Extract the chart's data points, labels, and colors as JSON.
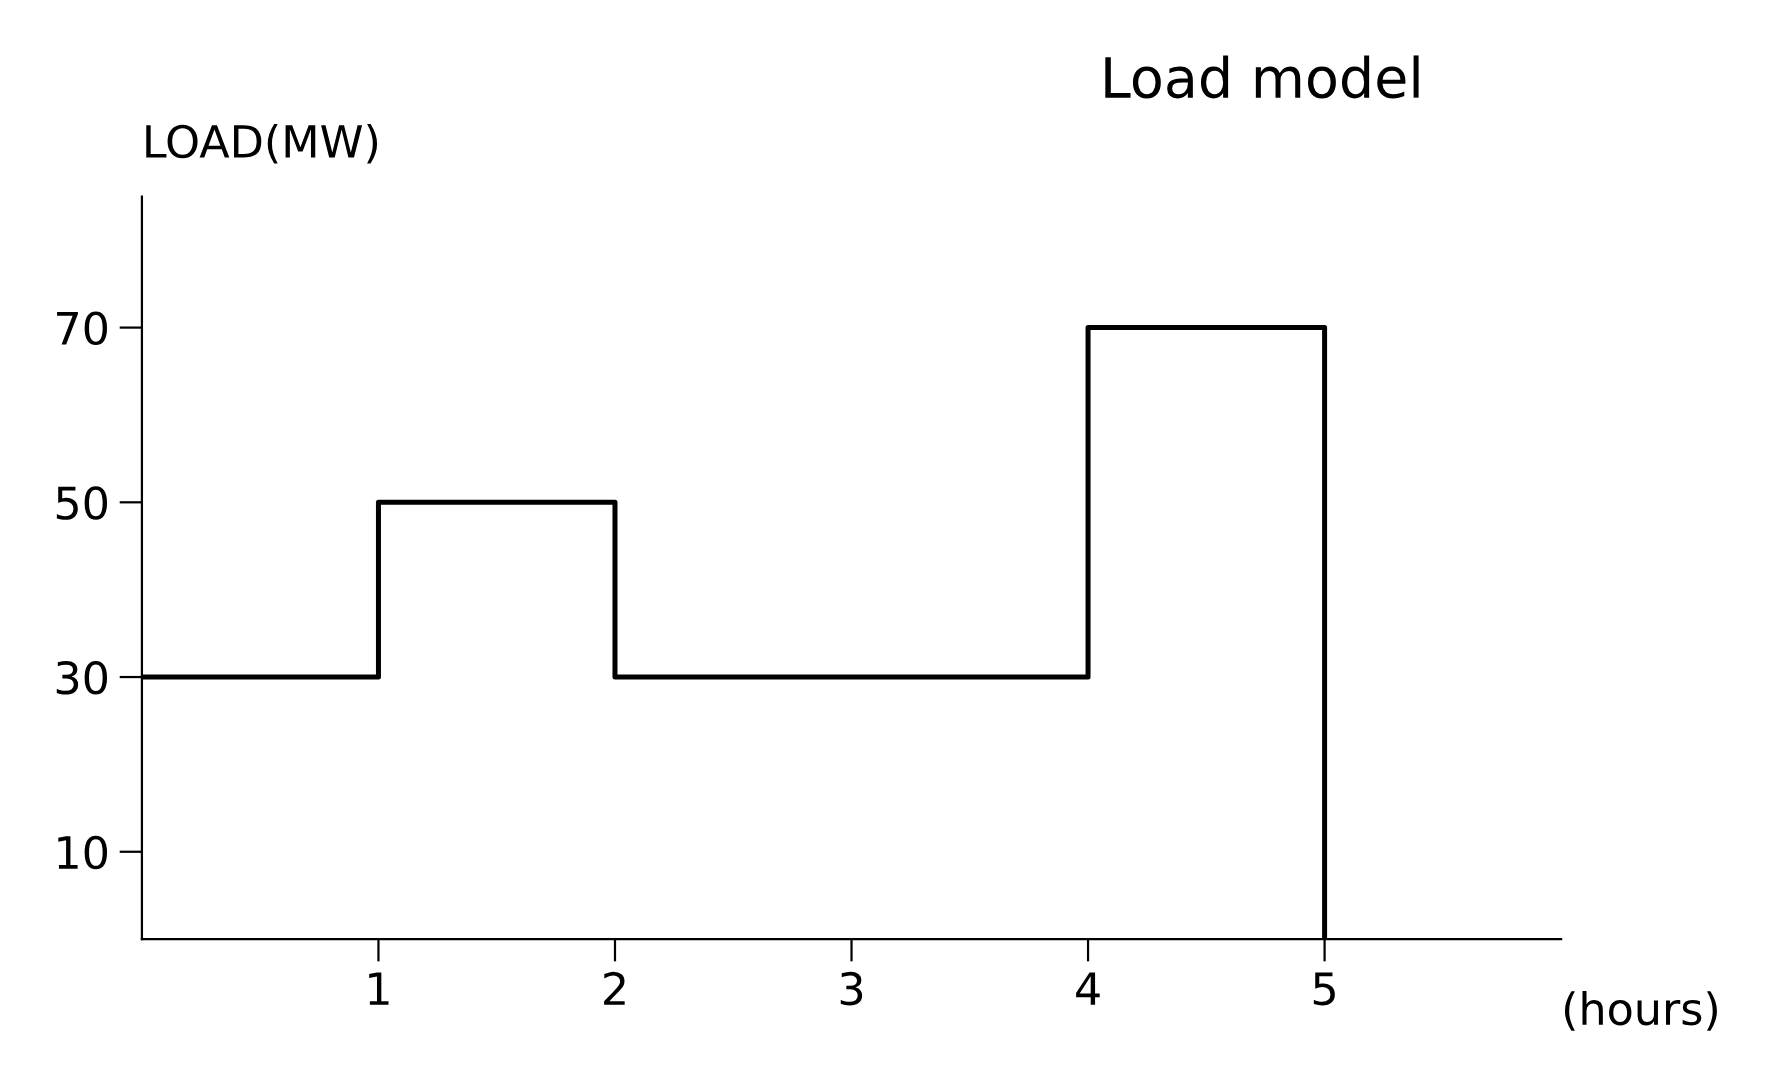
{
  "chart_data": {
    "type": "step",
    "title": "Load model",
    "ylabel": "LOAD(MW)",
    "xlabel": "(hours)",
    "x": [
      0,
      1,
      2,
      4,
      5
    ],
    "series": [
      {
        "color": "#000000",
        "values": [
          30,
          50,
          30,
          70,
          0
        ]
      }
    ],
    "xlim": [
      0,
      6
    ],
    "ylim": [
      0,
      85
    ],
    "xticks": [
      1,
      2,
      3,
      4,
      5
    ],
    "yticks": [
      10,
      30,
      50,
      70
    ],
    "grid": false,
    "legend": false
  }
}
